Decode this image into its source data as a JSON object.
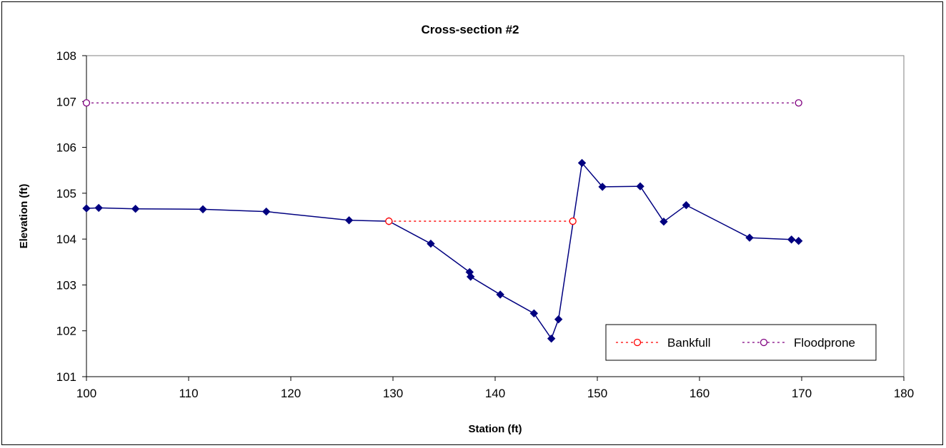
{
  "chart_data": {
    "type": "scatter",
    "title": "Cross-section #2",
    "xlabel": "Station (ft)",
    "ylabel": "Elevation (ft)",
    "xlim": [
      100,
      180
    ],
    "ylim": [
      101,
      108
    ],
    "xticks": [
      100,
      110,
      120,
      130,
      140,
      150,
      160,
      170,
      180
    ],
    "yticks": [
      101,
      102,
      103,
      104,
      105,
      106,
      107,
      108
    ],
    "grid": false,
    "legend_position": "bottom-right",
    "series": [
      {
        "color": "#000080",
        "marker": "diamond",
        "line": "solid",
        "points": [
          [
            100,
            104.67
          ],
          [
            101.2,
            104.68
          ],
          [
            104.8,
            104.66
          ],
          [
            111.4,
            104.65
          ],
          [
            117.6,
            104.6
          ],
          [
            125.7,
            104.41
          ],
          [
            129.6,
            104.39
          ],
          [
            133.7,
            103.9
          ],
          [
            137.5,
            103.28
          ],
          [
            137.6,
            103.18
          ],
          [
            140.5,
            102.79
          ],
          [
            143.8,
            102.38
          ],
          [
            145.5,
            101.83
          ],
          [
            146.2,
            102.25
          ],
          [
            148.5,
            105.66
          ],
          [
            150.5,
            105.14
          ],
          [
            154.2,
            105.15
          ],
          [
            156.5,
            104.38
          ],
          [
            158.7,
            104.74
          ],
          [
            164.9,
            104.03
          ],
          [
            169.0,
            103.99
          ],
          [
            169.7,
            103.96
          ]
        ]
      },
      {
        "name": "Bankfull",
        "color": "#ff0000",
        "marker": "circle",
        "line": "dashed",
        "points": [
          [
            129.6,
            104.39
          ],
          [
            147.6,
            104.39
          ]
        ]
      },
      {
        "name": "Floodprone",
        "color": "#800080",
        "marker": "circle",
        "line": "dashed",
        "points": [
          [
            100,
            106.97
          ],
          [
            169.7,
            106.97
          ]
        ]
      }
    ]
  }
}
